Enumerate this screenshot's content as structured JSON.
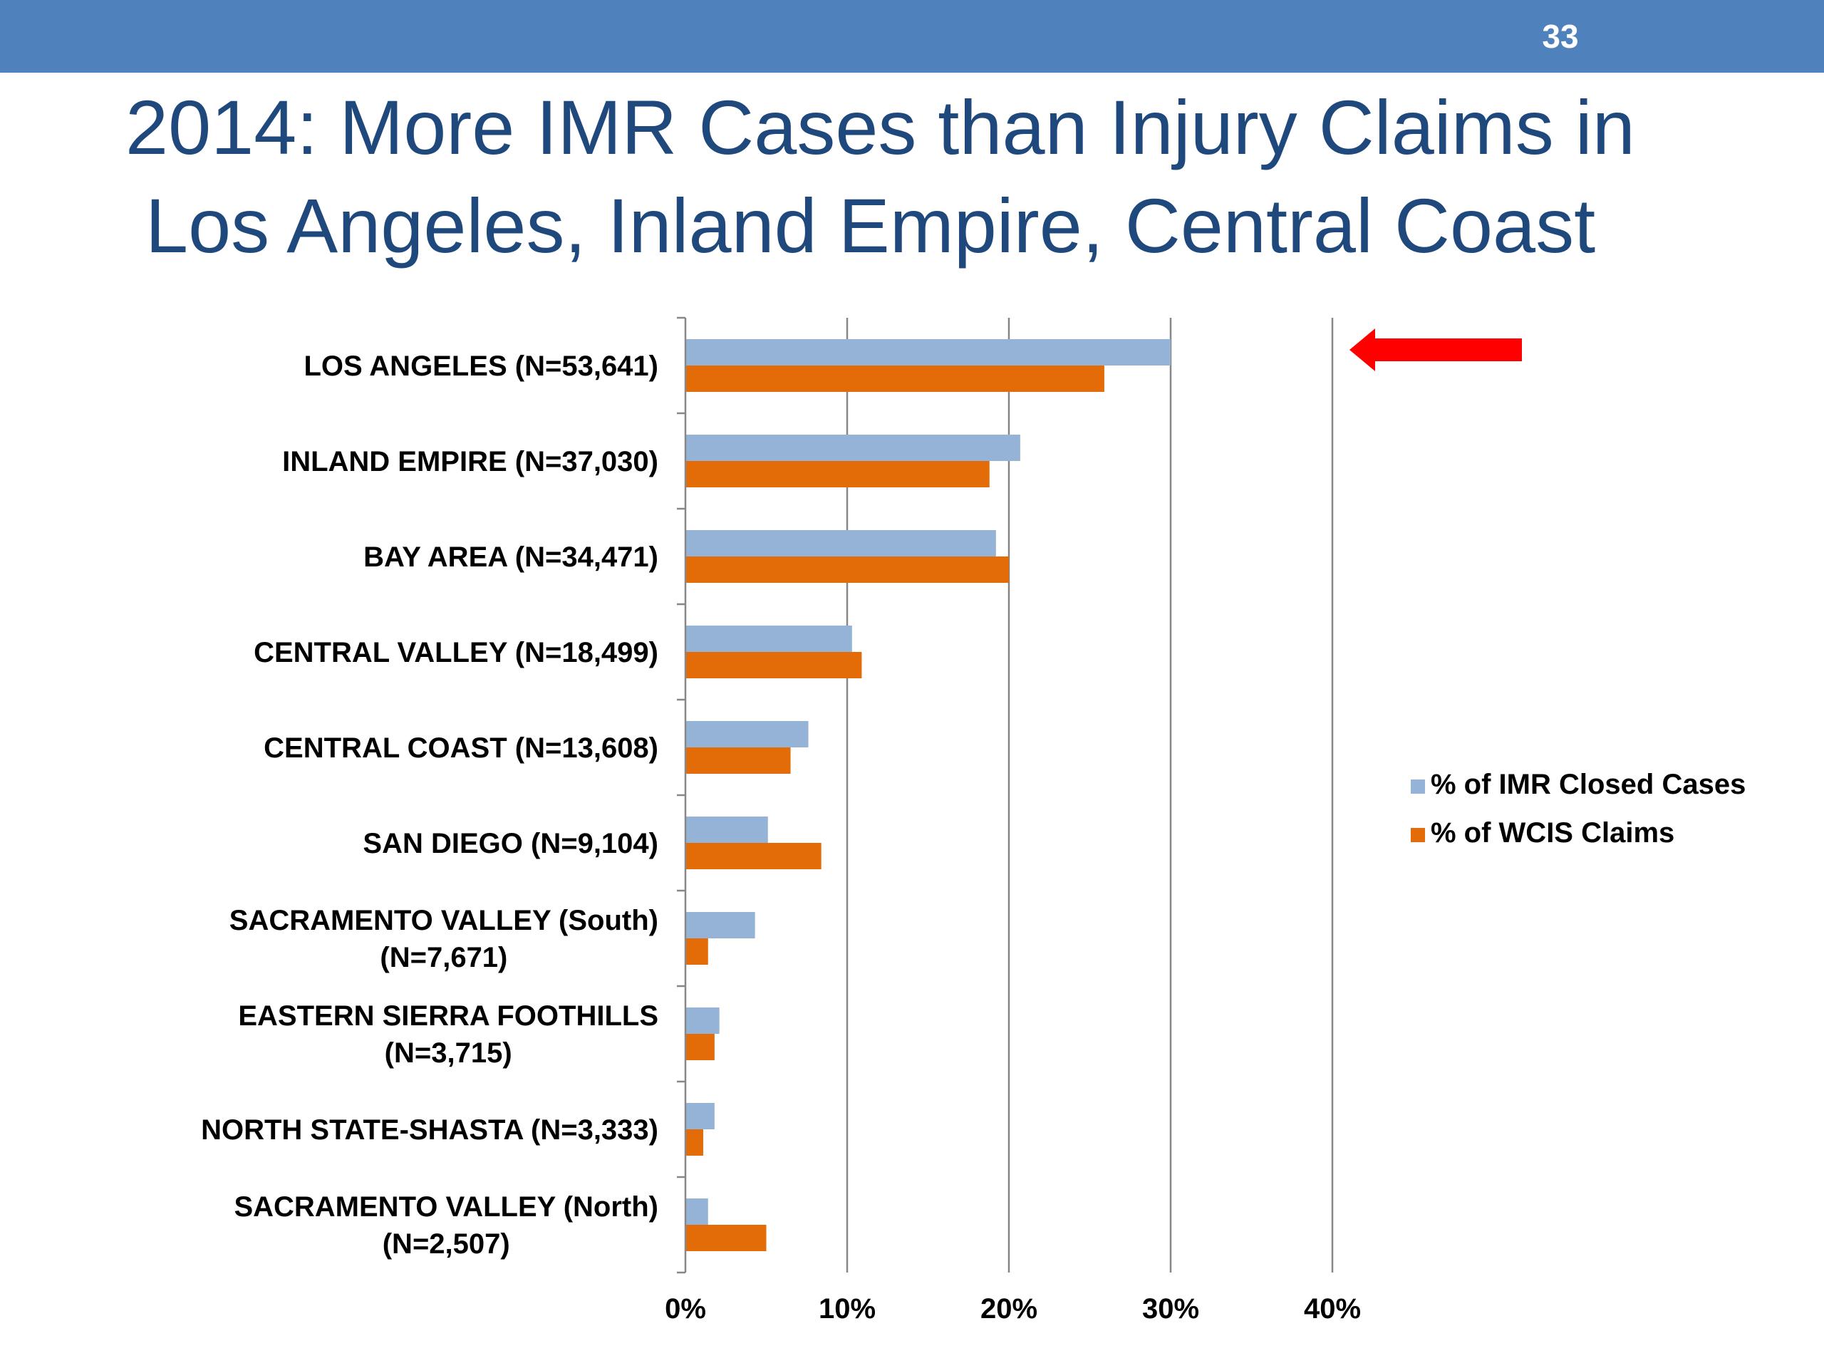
{
  "slide": {
    "number": "33",
    "title_line1": "2014: More IMR Cases than Injury Claims in",
    "title_line2": "Los Angeles, Inland Empire, Central Coast"
  },
  "colors": {
    "header_bar": "#4F81BD",
    "title_text": "#1F497D",
    "arrow": "#FF0000"
  },
  "icons": {
    "callout": "left-arrow-icon"
  },
  "chart_data": {
    "type": "bar",
    "orientation": "horizontal",
    "categories": [
      [
        "LOS ANGELES (N=53,641)"
      ],
      [
        "INLAND EMPIRE (N=37,030)"
      ],
      [
        "BAY AREA (N=34,471)"
      ],
      [
        "CENTRAL VALLEY (N=18,499)"
      ],
      [
        "CENTRAL COAST (N=13,608)"
      ],
      [
        "SAN DIEGO (N=9,104)"
      ],
      [
        "SACRAMENTO VALLEY (South)",
        "(N=7,671)"
      ],
      [
        "EASTERN SIERRA FOOTHILLS",
        "(N=3,715)"
      ],
      [
        "NORTH STATE-SHASTA (N=3,333)"
      ],
      [
        "SACRAMENTO VALLEY (North)",
        "(N=2,507)"
      ]
    ],
    "series": [
      {
        "name": "% of IMR Closed Cases",
        "color": "#95B3D7",
        "values": [
          30.0,
          20.7,
          19.2,
          10.3,
          7.6,
          5.1,
          4.3,
          2.1,
          1.8,
          1.4
        ]
      },
      {
        "name": "% of WCIS Claims",
        "color": "#E36C09",
        "values": [
          25.9,
          18.8,
          20.0,
          10.9,
          6.5,
          8.4,
          1.4,
          1.8,
          1.1,
          5.0
        ]
      }
    ],
    "xlim": [
      0,
      40
    ],
    "x_ticks": [
      0,
      10,
      20,
      30,
      40
    ],
    "x_tick_labels": [
      "0%",
      "10%",
      "20%",
      "30%",
      "40%"
    ],
    "grid": true,
    "legend": "right",
    "annotation": "red arrow pointing left at LOS ANGELES row"
  }
}
